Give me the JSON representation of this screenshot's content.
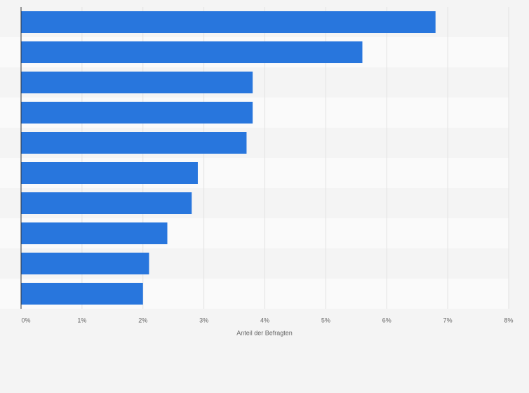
{
  "chart_data": {
    "type": "bar",
    "orientation": "horizontal",
    "categories": [
      null,
      null,
      null,
      null,
      null,
      null,
      null,
      null,
      null,
      null
    ],
    "values": [
      6.8,
      5.6,
      3.8,
      3.8,
      3.7,
      2.9,
      2.8,
      2.4,
      2.1,
      2.0
    ],
    "color": "#2876dd",
    "xlabel": "Anteil der Befragten",
    "xlim": [
      0,
      8
    ],
    "xticks": [
      {
        "value": 0,
        "label": "0%"
      },
      {
        "value": 1,
        "label": "1%"
      },
      {
        "value": 2,
        "label": "2%"
      },
      {
        "value": 3,
        "label": "3%"
      },
      {
        "value": 4,
        "label": "4%"
      },
      {
        "value": 5,
        "label": "5%"
      },
      {
        "value": 6,
        "label": "6%"
      },
      {
        "value": 7,
        "label": "7%"
      },
      {
        "value": 8,
        "label": "8%"
      }
    ],
    "grid": true
  }
}
